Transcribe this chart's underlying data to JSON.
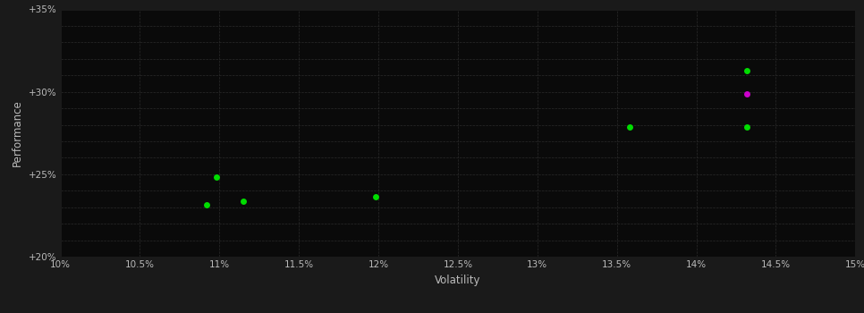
{
  "background_color": "#1a1a1a",
  "plot_bg_color": "#0a0a0a",
  "grid_color": "#2a2a2a",
  "xlabel": "Volatility",
  "ylabel": "Performance",
  "xlim": [
    0.1,
    0.15
  ],
  "ylim": [
    0.2,
    0.35
  ],
  "xticks": [
    0.1,
    0.105,
    0.11,
    0.115,
    0.12,
    0.125,
    0.13,
    0.135,
    0.14,
    0.145,
    0.15
  ],
  "yticks": [
    0.2,
    0.21,
    0.22,
    0.23,
    0.24,
    0.25,
    0.26,
    0.27,
    0.28,
    0.29,
    0.3,
    0.31,
    0.32,
    0.33,
    0.34,
    0.35
  ],
  "ytick_major": [
    0.2,
    0.25,
    0.3,
    0.35
  ],
  "xtick_labels": [
    "10%",
    "10.5%",
    "11%",
    "11.5%",
    "12%",
    "12.5%",
    "13%",
    "13.5%",
    "14%",
    "14.5%",
    "15%"
  ],
  "ytick_major_labels": [
    "+20%",
    "+25%",
    "+30%",
    "+35%"
  ],
  "points_green": [
    [
      0.1092,
      0.2315
    ],
    [
      0.1115,
      0.2335
    ],
    [
      0.1098,
      0.2483
    ],
    [
      0.1198,
      0.2365
    ],
    [
      0.1358,
      0.2785
    ],
    [
      0.1432,
      0.2785
    ],
    [
      0.1432,
      0.313
    ]
  ],
  "points_magenta": [
    [
      0.1432,
      0.2985
    ]
  ],
  "green_color": "#00dd00",
  "magenta_color": "#cc00cc",
  "text_color": "#bbbbbb",
  "marker_size": 5,
  "font_size_tick": 7.5,
  "font_size_label": 8.5
}
